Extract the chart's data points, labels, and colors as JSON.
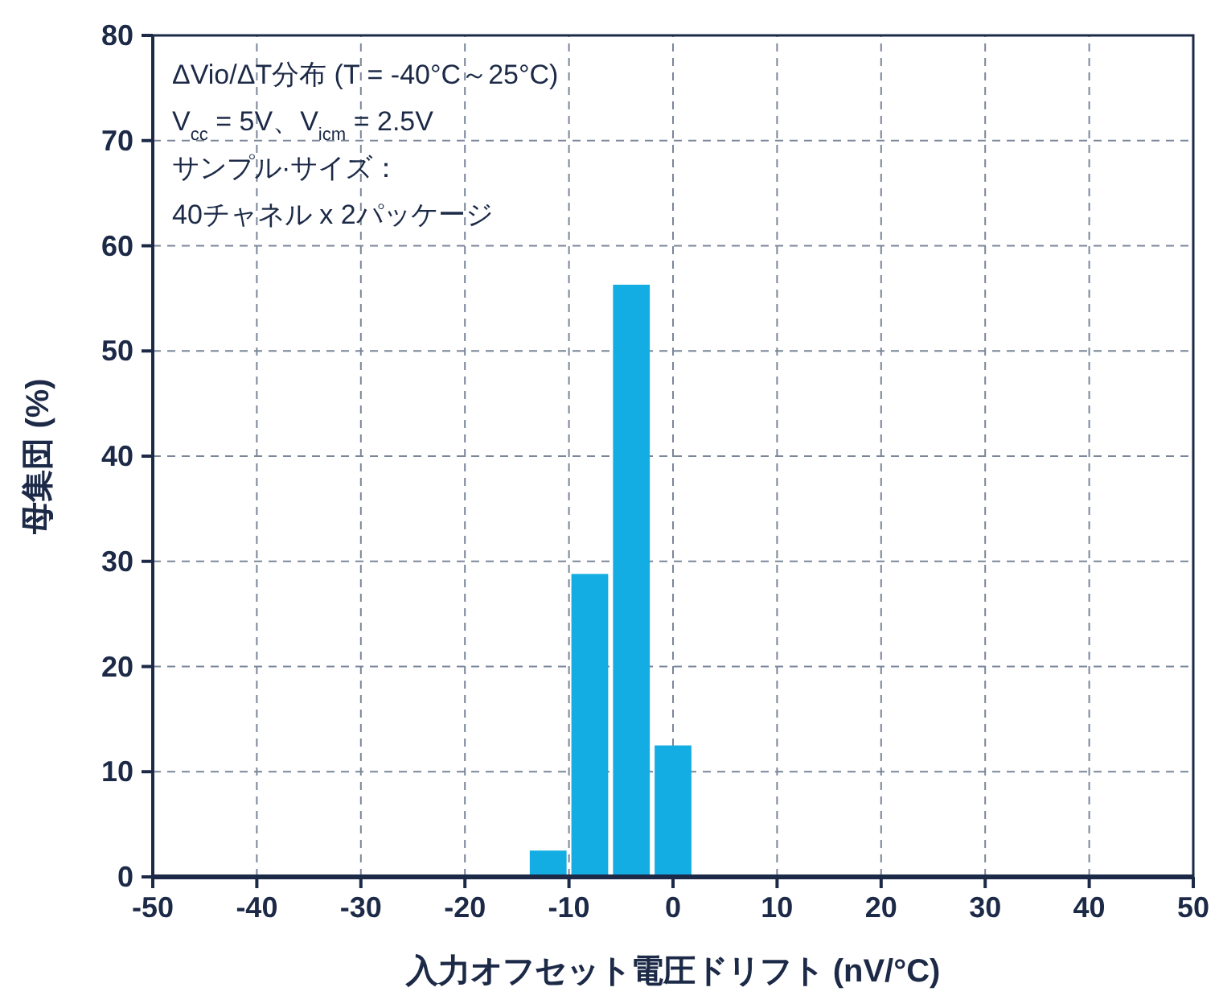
{
  "chart_data": {
    "type": "histogram",
    "xlabel": "入力オフセット電圧ドリフト (nV/°C)",
    "ylabel": "母集団 (%)",
    "annotations": [
      "ΔVio/ΔT分布 (T = -40°C～25°C)",
      "V$_{cc}$ = 5V、V$_{icm}$ = 2.5V",
      "サンプル·サイズ：",
      "40チャネル x 2パッケージ"
    ],
    "bins": [
      -14,
      -10,
      -6,
      -2,
      2
    ],
    "values": [
      2.5,
      28.8,
      56.3,
      12.5
    ],
    "color": "#13ade3",
    "xlim": [
      -50,
      50
    ],
    "xticks": [
      -50,
      -40,
      -30,
      -20,
      -10,
      0,
      10,
      20,
      30,
      40,
      50
    ],
    "ylim": [
      0,
      80
    ],
    "yticks": [
      0,
      10,
      20,
      30,
      40,
      50,
      60,
      70,
      80
    ],
    "grid": true
  }
}
